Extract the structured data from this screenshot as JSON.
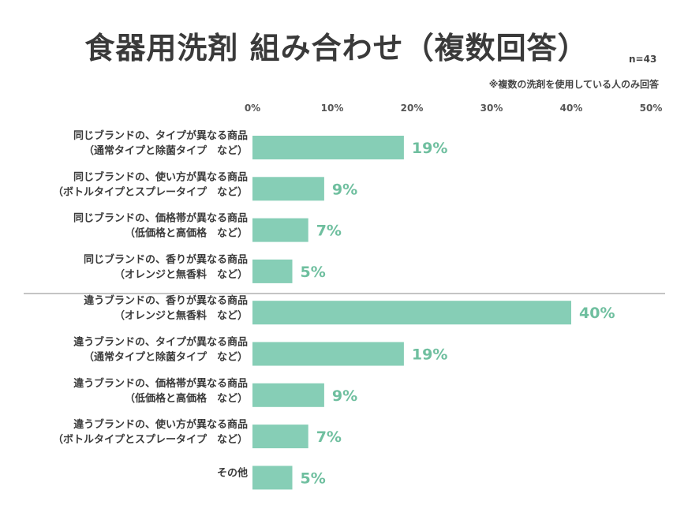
{
  "title": "食器用洗剤 組み合わせ（複数回答）",
  "sample_size": "n=43",
  "note": "※複数の洗剤を使用している人のみ回答",
  "colors": {
    "bar": "#86ceb6",
    "value_label": "#6fbf9f",
    "divider": "#888888"
  },
  "chart_data": {
    "type": "bar",
    "orientation": "horizontal",
    "title": "食器用洗剤 組み合わせ（複数回答）",
    "xlabel": "",
    "ylabel": "",
    "xlim": [
      0,
      50
    ],
    "ticks": [
      "0%",
      "10%",
      "20%",
      "30%",
      "40%",
      "50%"
    ],
    "categories": [
      [
        "同じブランドの、タイプが異なる商品",
        "（通常タイプと除菌タイプ　など）"
      ],
      [
        "同じブランドの、使い方が異なる商品",
        "（ボトルタイプとスプレータイプ　など）"
      ],
      [
        "同じブランドの、価格帯が異なる商品",
        "（低価格と高価格　など）"
      ],
      [
        "同じブランドの、香りが異なる商品",
        "（オレンジと無香料　など）"
      ],
      [
        "違うブランドの、香りが異なる商品",
        "（オレンジと無香料　など）"
      ],
      [
        "違うブランドの、タイプが異なる商品",
        "（通常タイプと除菌タイプ　など）"
      ],
      [
        "違うブランドの、価格帯が異なる商品",
        "（低価格と高価格　など）"
      ],
      [
        "違うブランドの、使い方が異なる商品",
        "（ボトルタイプとスプレータイプ　など）"
      ],
      [
        "その他"
      ]
    ],
    "values": [
      19,
      9,
      7,
      5,
      40,
      19,
      9,
      7,
      5
    ],
    "value_labels": [
      "19%",
      "9%",
      "7%",
      "5%",
      "40%",
      "19%",
      "9%",
      "7%",
      "5%"
    ],
    "divider_after_index": 3,
    "grid": false,
    "legend": "none"
  }
}
